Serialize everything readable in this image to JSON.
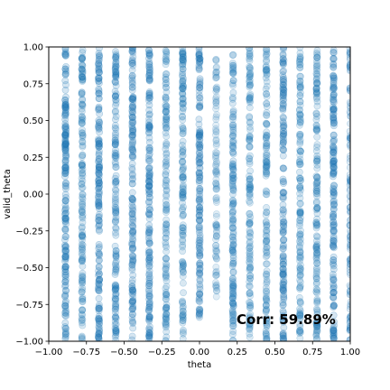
{
  "chart_data": {
    "type": "scatter",
    "xlabel": "theta",
    "ylabel": "valid_theta",
    "xlim": [
      -1.0,
      1.0
    ],
    "ylim": [
      -1.0,
      1.0
    ],
    "xticks": [
      "−1.00",
      "−0.75",
      "−0.50",
      "−0.25",
      "0.00",
      "0.25",
      "0.50",
      "0.75",
      "1.00"
    ],
    "yticks": [
      "−1.00",
      "−0.75",
      "−0.50",
      "−0.25",
      "0.00",
      "0.25",
      "0.50",
      "0.75",
      "1.00"
    ],
    "grid": false,
    "marker_color": "#1f77b4",
    "annotation": "Corr: 59.89%",
    "series": [
      {
        "columns": [
          {
            "x": -0.889,
            "y_range": [
              -1.0,
              1.0
            ],
            "density": 0.95
          },
          {
            "x": -0.778,
            "y_range": [
              -1.0,
              1.0
            ],
            "density": 0.75
          },
          {
            "x": -0.667,
            "y_range": [
              -1.0,
              1.0
            ],
            "density": 0.9
          },
          {
            "x": -0.556,
            "y_range": [
              -1.0,
              1.0
            ],
            "density": 0.8
          },
          {
            "x": -0.444,
            "y_range": [
              -1.0,
              1.0
            ],
            "density": 0.85
          },
          {
            "x": -0.333,
            "y_range": [
              -1.0,
              1.0
            ],
            "density": 0.9
          },
          {
            "x": -0.222,
            "y_range": [
              -1.0,
              1.0
            ],
            "density": 0.7
          },
          {
            "x": -0.111,
            "y_range": [
              -1.0,
              1.0
            ],
            "density": 0.75
          },
          {
            "x": 0.0,
            "y_range": [
              -0.85,
              1.0
            ],
            "density": 0.85
          },
          {
            "x": 0.111,
            "y_range": [
              -0.7,
              0.95
            ],
            "density": 0.45
          },
          {
            "x": 0.222,
            "y_range": [
              -1.0,
              0.95
            ],
            "density": 0.8
          },
          {
            "x": 0.333,
            "y_range": [
              -1.0,
              1.0
            ],
            "density": 0.7
          },
          {
            "x": 0.444,
            "y_range": [
              -1.0,
              1.0
            ],
            "density": 0.7
          },
          {
            "x": 0.556,
            "y_range": [
              -1.0,
              1.0
            ],
            "density": 0.85
          },
          {
            "x": 0.667,
            "y_range": [
              -1.0,
              1.0
            ],
            "density": 0.7
          },
          {
            "x": 0.778,
            "y_range": [
              -1.0,
              1.0
            ],
            "density": 0.75
          },
          {
            "x": 0.889,
            "y_range": [
              -1.0,
              1.0
            ],
            "density": 0.9
          },
          {
            "x": 1.0,
            "y_range": [
              -1.0,
              1.0
            ],
            "density": 0.6
          }
        ]
      }
    ]
  }
}
